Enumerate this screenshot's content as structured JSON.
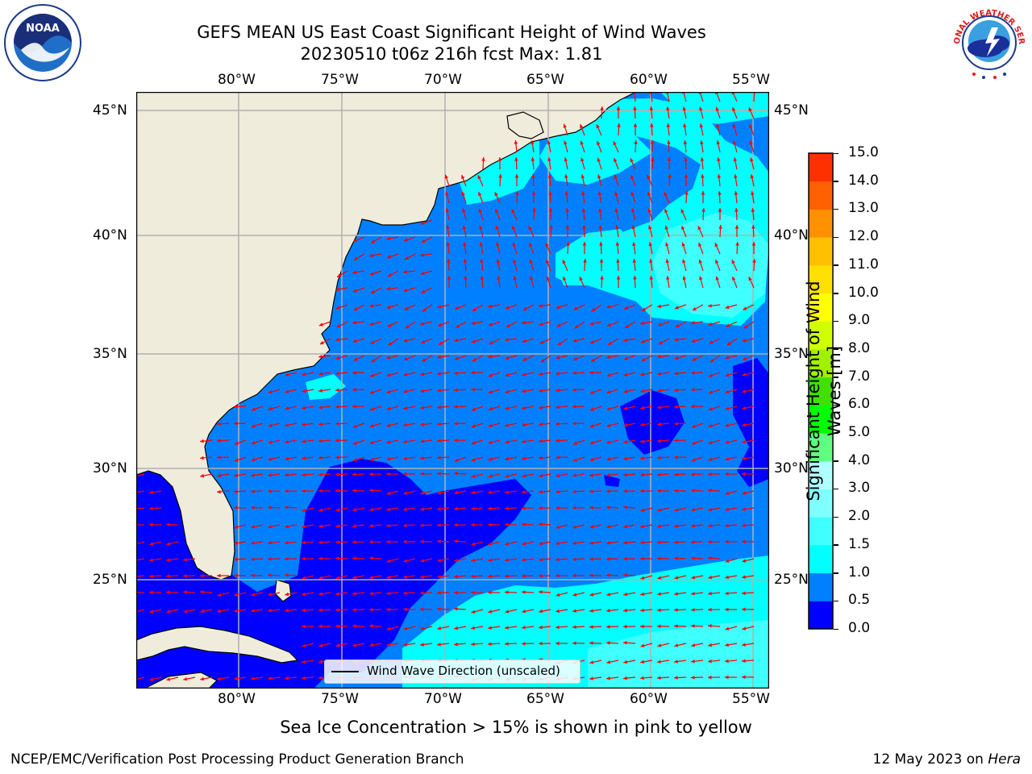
{
  "header": {
    "title_line1": "GEFS MEAN US East Coast Significant Height of Wind Waves",
    "title_line2": "20230510 t06z 216h fcst   Max: 1.81"
  },
  "map": {
    "lon_ticks": [
      "80°W",
      "75°W",
      "70°W",
      "65°W",
      "60°W",
      "55°W"
    ],
    "lat_ticks": [
      "45°N",
      "40°N",
      "35°N",
      "30°N",
      "25°N"
    ],
    "land_color": "#efecdc",
    "graticule_color": "#b0b0b0",
    "arrow_color": "#ff0000"
  },
  "legend": {
    "label": "Wind Wave Direction (unscaled)"
  },
  "colorbar": {
    "label_line1": "Significant Height of Wind",
    "label_line2": "Waves [m]",
    "ticks": [
      "0.0",
      "0.5",
      "1.0",
      "1.5",
      "2.0",
      "3.0",
      "4.0",
      "5.0",
      "6.0",
      "7.0",
      "8.0",
      "9.0",
      "10.0",
      "11.0",
      "12.0",
      "13.0",
      "14.0",
      "15.0"
    ],
    "colors": [
      "#0000ff",
      "#0080ff",
      "#00ffff",
      "#40ffff",
      "#80ffff",
      "#b0ffff",
      "#60ff80",
      "#00ff00",
      "#40e000",
      "#a0f000",
      "#d0ff00",
      "#ffff00",
      "#ffe000",
      "#ffc000",
      "#ff9000",
      "#ff6000",
      "#ff3000"
    ]
  },
  "logos": {
    "left": {
      "text": "NOAA",
      "icon": "noaa-logo-icon"
    },
    "right": {
      "text": "NATIONAL WEATHER SERVICE",
      "icon": "nws-logo-icon"
    }
  },
  "caption": "Sea Ice Concentration > 15% is shown in pink to yellow",
  "footer": {
    "left": "NCEP/EMC/Verification Post Processing Product Generation Branch",
    "right_prefix": "12 May 2023 on ",
    "right_host": "Hera"
  }
}
